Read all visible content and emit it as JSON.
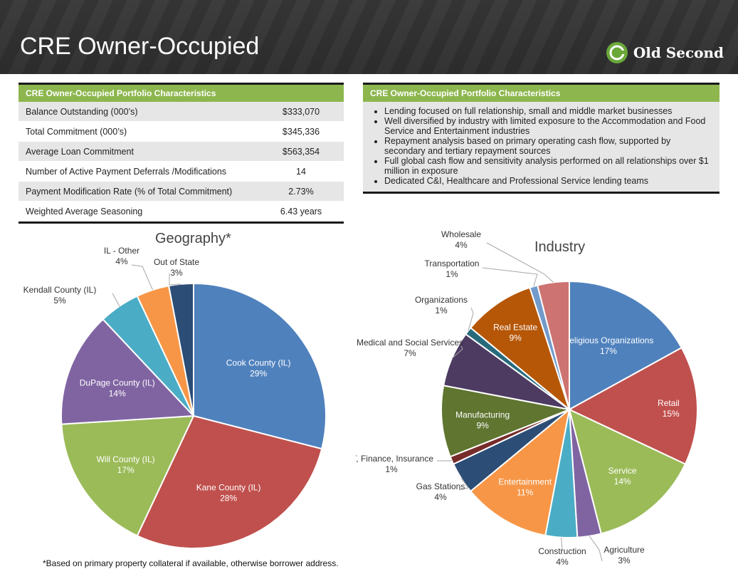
{
  "page": {
    "title": "CRE Owner-Occupied",
    "logo_text": "Old Second"
  },
  "left_table": {
    "header": "CRE Owner-Occupied Portfolio Characteristics",
    "rows": [
      {
        "label": "Balance Outstanding (000’s)",
        "value": "$333,070"
      },
      {
        "label": "Total Commitment (000’s)",
        "value": "$345,336"
      },
      {
        "label": "Average Loan Commitment",
        "value": "$563,354"
      },
      {
        "label": "Number of Active  Payment Deferrals /Modifications",
        "value": "14"
      },
      {
        "label": "Payment Modification Rate (% of Total Commitment)",
        "value": "2.73%"
      },
      {
        "label": "Weighted Average Seasoning",
        "value": "6.43 years"
      }
    ]
  },
  "right_box": {
    "header": "CRE  Owner-Occupied Portfolio Characteristics",
    "bullets": [
      "Lending focused on full relationship, small and middle market businesses",
      "Well diversified by industry with limited exposure to the Accommodation and Food Service and Entertainment industries",
      "Repayment analysis based on primary operating cash flow, supported by secondary and tertiary repayment sources",
      "Full global cash flow and sensitivity analysis performed on all relationships over $1 million in exposure",
      "Dedicated C&I, Healthcare and Professional Service lending teams"
    ]
  },
  "footnote": "*Based on primary property collateral if available, otherwise borrower address.",
  "chart_data": [
    {
      "type": "pie",
      "title": "Geography*",
      "slices": [
        {
          "name": "Cook County (IL)",
          "value": 29,
          "label": "29%",
          "color": "#4f81bd"
        },
        {
          "name": "Kane County (IL)",
          "value": 28,
          "label": "28%",
          "color": "#c0504d"
        },
        {
          "name": "Will County (IL)",
          "value": 17,
          "label": "17%",
          "color": "#9bbb59"
        },
        {
          "name": "DuPage County (IL)",
          "value": 14,
          "label": "14%",
          "color": "#8064a2"
        },
        {
          "name": "Kendall County (IL)",
          "value": 5,
          "label": "5%",
          "color": "#4bacc6"
        },
        {
          "name": "IL - Other",
          "value": 4,
          "label": "4%",
          "color": "#f79646"
        },
        {
          "name": "Out of State",
          "value": 3,
          "label": "3%",
          "color": "#2c4d75"
        }
      ]
    },
    {
      "type": "pie",
      "title": "Industry",
      "slices": [
        {
          "name": "Religious Organizations",
          "value": 17,
          "label": "17%",
          "color": "#4f81bd"
        },
        {
          "name": "Retail",
          "value": 15,
          "label": "15%",
          "color": "#c0504d"
        },
        {
          "name": "Service",
          "value": 14,
          "label": "14%",
          "color": "#9bbb59"
        },
        {
          "name": "Agriculture",
          "value": 3,
          "label": "3%",
          "color": "#8064a2"
        },
        {
          "name": "Construction",
          "value": 4,
          "label": "4%",
          "color": "#4bacc6"
        },
        {
          "name": "Entertainment",
          "value": 11,
          "label": "11%",
          "color": "#f79646"
        },
        {
          "name": "Gas Stations",
          "value": 4,
          "label": "4%",
          "color": "#2c4d75"
        },
        {
          "name": "IT, Finance, Insurance",
          "value": 1,
          "label": "1%",
          "color": "#772c2a"
        },
        {
          "name": "Manufacturing",
          "value": 9,
          "label": "9%",
          "color": "#5f7530"
        },
        {
          "name": "Medical and Social Services",
          "value": 7,
          "label": "7%",
          "color": "#4d3b62"
        },
        {
          "name": "Organizations",
          "value": 1,
          "label": "1%",
          "color": "#276a7c"
        },
        {
          "name": "Real Estate",
          "value": 9,
          "label": "9%",
          "color": "#b65708"
        },
        {
          "name": "Transportation",
          "value": 1,
          "label": "1%",
          "color": "#729aca"
        },
        {
          "name": "Wholesale",
          "value": 4,
          "label": "4%",
          "color": "#cd7371"
        }
      ]
    }
  ]
}
